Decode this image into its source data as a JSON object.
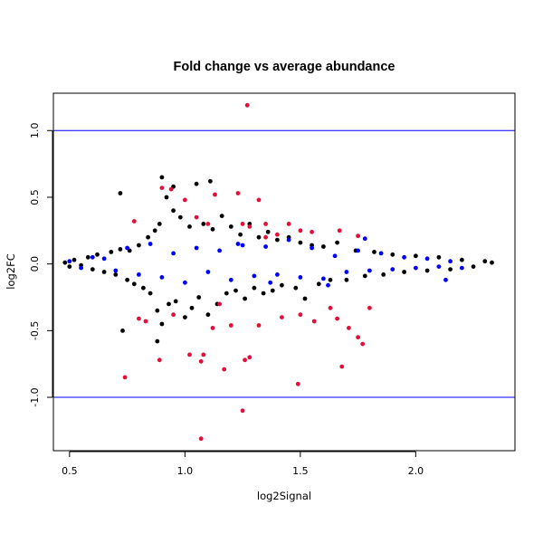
{
  "chart_data": {
    "type": "scatter",
    "title": "Fold change vs average abundance",
    "xlabel": "log2Signal",
    "ylabel": "log2FC",
    "xlim": [
      0.43,
      2.43
    ],
    "ylim": [
      -1.4,
      1.28
    ],
    "xticks": [
      {
        "value": 0.5,
        "label": "0.5"
      },
      {
        "value": 1.0,
        "label": "1.0"
      },
      {
        "value": 1.5,
        "label": "1.5"
      },
      {
        "value": 2.0,
        "label": "2.0"
      }
    ],
    "yticks": [
      {
        "value": -1.0,
        "label": "-1.0"
      },
      {
        "value": -0.5,
        "label": "-0.5"
      },
      {
        "value": 0.0,
        "label": "0.0"
      },
      {
        "value": 0.5,
        "label": "0.5"
      },
      {
        "value": 1.0,
        "label": "1.0"
      }
    ],
    "reference_lines": [
      1.0,
      -1.0
    ],
    "reference_line_color": "#0000ff",
    "grid": false,
    "series": [
      {
        "color": "#000000",
        "points": [
          [
            0.48,
            0.01
          ],
          [
            0.5,
            -0.02
          ],
          [
            0.52,
            0.03
          ],
          [
            0.55,
            -0.01
          ],
          [
            0.58,
            0.05
          ],
          [
            0.6,
            -0.04
          ],
          [
            0.62,
            0.07
          ],
          [
            0.65,
            -0.06
          ],
          [
            0.68,
            0.09
          ],
          [
            0.7,
            -0.08
          ],
          [
            0.72,
            0.11
          ],
          [
            0.75,
            -0.12
          ],
          [
            0.76,
            0.1
          ],
          [
            0.78,
            -0.15
          ],
          [
            0.8,
            0.14
          ],
          [
            0.82,
            -0.18
          ],
          [
            0.84,
            0.2
          ],
          [
            0.85,
            -0.22
          ],
          [
            0.87,
            0.25
          ],
          [
            0.88,
            -0.35
          ],
          [
            0.89,
            0.3
          ],
          [
            0.9,
            -0.45
          ],
          [
            0.9,
            0.65
          ],
          [
            0.92,
            0.5
          ],
          [
            0.93,
            -0.3
          ],
          [
            0.95,
            0.4
          ],
          [
            0.96,
            -0.28
          ],
          [
            0.98,
            0.35
          ],
          [
            1.0,
            -0.4
          ],
          [
            1.02,
            0.28
          ],
          [
            1.03,
            -0.33
          ],
          [
            1.05,
            0.6
          ],
          [
            1.06,
            -0.25
          ],
          [
            1.08,
            0.3
          ],
          [
            1.1,
            -0.38
          ],
          [
            1.12,
            0.26
          ],
          [
            1.14,
            -0.3
          ],
          [
            1.16,
            0.36
          ],
          [
            1.18,
            -0.22
          ],
          [
            1.2,
            0.28
          ],
          [
            1.22,
            -0.2
          ],
          [
            1.24,
            0.22
          ],
          [
            1.26,
            -0.26
          ],
          [
            1.28,
            0.3
          ],
          [
            1.3,
            -0.18
          ],
          [
            1.32,
            0.2
          ],
          [
            1.34,
            -0.22
          ],
          [
            1.36,
            0.24
          ],
          [
            1.38,
            -0.2
          ],
          [
            1.4,
            0.18
          ],
          [
            1.42,
            -0.16
          ],
          [
            1.45,
            0.2
          ],
          [
            1.48,
            -0.18
          ],
          [
            1.5,
            0.16
          ],
          [
            1.52,
            -0.26
          ],
          [
            1.55,
            0.14
          ],
          [
            1.58,
            -0.15
          ],
          [
            1.6,
            0.13
          ],
          [
            1.63,
            -0.12
          ],
          [
            1.66,
            0.16
          ],
          [
            1.7,
            -0.12
          ],
          [
            1.74,
            0.1
          ],
          [
            1.78,
            -0.09
          ],
          [
            1.82,
            0.09
          ],
          [
            1.86,
            -0.08
          ],
          [
            1.9,
            0.07
          ],
          [
            1.95,
            -0.06
          ],
          [
            2.0,
            0.06
          ],
          [
            2.05,
            -0.05
          ],
          [
            2.1,
            0.05
          ],
          [
            2.15,
            -0.04
          ],
          [
            2.2,
            0.03
          ],
          [
            2.25,
            -0.02
          ],
          [
            2.3,
            0.02
          ],
          [
            2.33,
            0.01
          ],
          [
            0.72,
            0.53
          ],
          [
            0.95,
            0.58
          ],
          [
            1.11,
            0.62
          ],
          [
            0.88,
            -0.58
          ],
          [
            0.73,
            -0.5
          ]
        ]
      },
      {
        "color": "#0000ff",
        "points": [
          [
            0.5,
            0.02
          ],
          [
            0.55,
            -0.03
          ],
          [
            0.6,
            0.05
          ],
          [
            0.65,
            0.04
          ],
          [
            0.7,
            -0.05
          ],
          [
            0.75,
            0.12
          ],
          [
            0.8,
            -0.08
          ],
          [
            0.85,
            0.15
          ],
          [
            0.9,
            -0.1
          ],
          [
            0.95,
            0.08
          ],
          [
            1.0,
            -0.14
          ],
          [
            1.05,
            0.12
          ],
          [
            1.1,
            -0.06
          ],
          [
            1.15,
            0.1
          ],
          [
            1.2,
            -0.12
          ],
          [
            1.25,
            0.14
          ],
          [
            1.3,
            -0.09
          ],
          [
            1.35,
            0.13
          ],
          [
            1.4,
            -0.08
          ],
          [
            1.45,
            0.18
          ],
          [
            1.5,
            -0.1
          ],
          [
            1.55,
            0.12
          ],
          [
            1.6,
            -0.11
          ],
          [
            1.65,
            0.06
          ],
          [
            1.7,
            -0.06
          ],
          [
            1.75,
            0.1
          ],
          [
            1.8,
            -0.05
          ],
          [
            1.85,
            0.08
          ],
          [
            1.9,
            -0.04
          ],
          [
            1.95,
            0.05
          ],
          [
            2.0,
            -0.03
          ],
          [
            2.05,
            0.04
          ],
          [
            2.1,
            -0.02
          ],
          [
            2.15,
            0.02
          ],
          [
            2.2,
            -0.03
          ],
          [
            1.23,
            0.15
          ],
          [
            1.37,
            -0.14
          ],
          [
            1.62,
            -0.16
          ],
          [
            1.78,
            0.19
          ],
          [
            2.13,
            -0.12
          ]
        ]
      },
      {
        "color": "#e0103a",
        "points": [
          [
            1.27,
            1.19
          ],
          [
            1.25,
            -1.1
          ],
          [
            1.07,
            -1.31
          ],
          [
            0.74,
            -0.85
          ],
          [
            1.49,
            -0.9
          ],
          [
            1.68,
            -0.77
          ],
          [
            0.89,
            -0.72
          ],
          [
            1.02,
            -0.68
          ],
          [
            1.07,
            -0.73
          ],
          [
            1.08,
            -0.68
          ],
          [
            1.17,
            -0.79
          ],
          [
            1.26,
            -0.72
          ],
          [
            1.28,
            -0.7
          ],
          [
            0.9,
            0.57
          ],
          [
            0.94,
            0.56
          ],
          [
            1.0,
            0.48
          ],
          [
            1.13,
            0.52
          ],
          [
            1.23,
            0.53
          ],
          [
            1.32,
            0.48
          ],
          [
            1.25,
            0.3
          ],
          [
            1.35,
            0.2
          ],
          [
            1.4,
            0.22
          ],
          [
            1.55,
            0.24
          ],
          [
            1.67,
            0.25
          ],
          [
            1.75,
            0.21
          ],
          [
            0.78,
            0.32
          ],
          [
            0.83,
            -0.43
          ],
          [
            0.8,
            -0.41
          ],
          [
            1.12,
            -0.48
          ],
          [
            1.2,
            -0.46
          ],
          [
            1.32,
            -0.46
          ],
          [
            1.42,
            -0.4
          ],
          [
            1.56,
            -0.43
          ],
          [
            1.71,
            -0.48
          ],
          [
            1.75,
            -0.55
          ],
          [
            1.77,
            -0.6
          ],
          [
            1.5,
            -0.38
          ],
          [
            1.66,
            -0.41
          ],
          [
            1.8,
            -0.33
          ],
          [
            1.63,
            -0.33
          ],
          [
            0.95,
            -0.38
          ],
          [
            1.15,
            -0.3
          ],
          [
            1.05,
            0.35
          ],
          [
            1.1,
            0.3
          ],
          [
            1.45,
            0.3
          ],
          [
            1.5,
            0.25
          ],
          [
            1.28,
            0.28
          ],
          [
            1.35,
            0.3
          ]
        ]
      }
    ]
  }
}
